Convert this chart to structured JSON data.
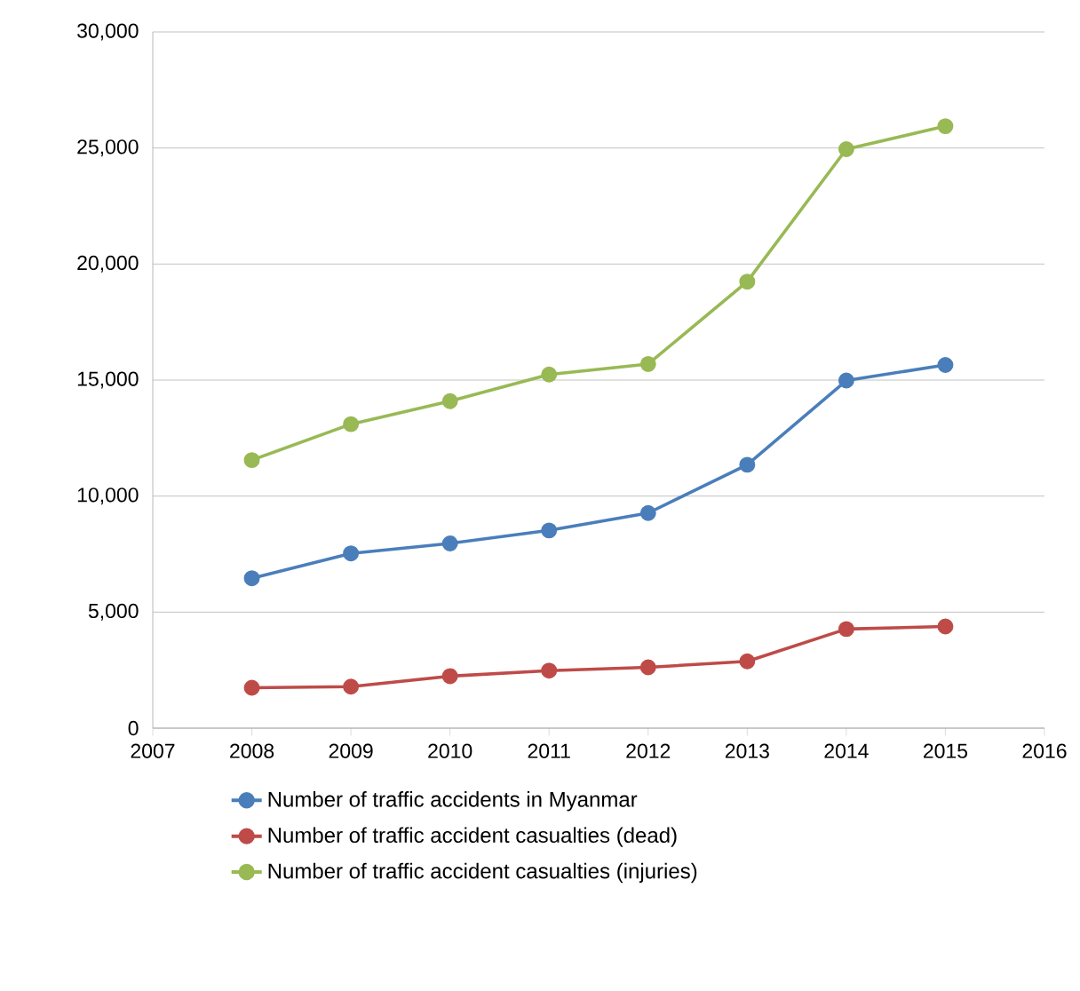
{
  "chart_data": {
    "type": "line",
    "x": [
      2008,
      2009,
      2010,
      2011,
      2012,
      2013,
      2014,
      2015
    ],
    "series": [
      {
        "name": "Number of traffic accidents in Myanmar",
        "color": "#4a7ebb",
        "values": [
          6460,
          7530,
          7960,
          8520,
          9270,
          11350,
          14980,
          15650
        ]
      },
      {
        "name": "Number of traffic accident casualties (dead)",
        "color": "#be4b48",
        "values": [
          1740,
          1790,
          2240,
          2480,
          2620,
          2880,
          4270,
          4380
        ]
      },
      {
        "name": "Number of traffic accident casualties (injuries)",
        "color": "#98b954",
        "values": [
          11550,
          13100,
          14090,
          15240,
          15690,
          19240,
          24950,
          25940
        ]
      }
    ],
    "xlim": [
      2007,
      2016
    ],
    "xticks": [
      2007,
      2008,
      2009,
      2010,
      2011,
      2012,
      2013,
      2014,
      2015,
      2016
    ],
    "ylim": [
      0,
      30000
    ],
    "yticks": [
      {
        "value": 0,
        "label": "0"
      },
      {
        "value": 5000,
        "label": "5,000"
      },
      {
        "value": 10000,
        "label": "10,000"
      },
      {
        "value": 15000,
        "label": "15,000"
      },
      {
        "value": 20000,
        "label": "20,000"
      },
      {
        "value": 25000,
        "label": "25,000"
      },
      {
        "value": 30000,
        "label": "30,000"
      }
    ],
    "grid": "y",
    "legend": "bottom",
    "marker": "circle",
    "line_style": "solid"
  }
}
